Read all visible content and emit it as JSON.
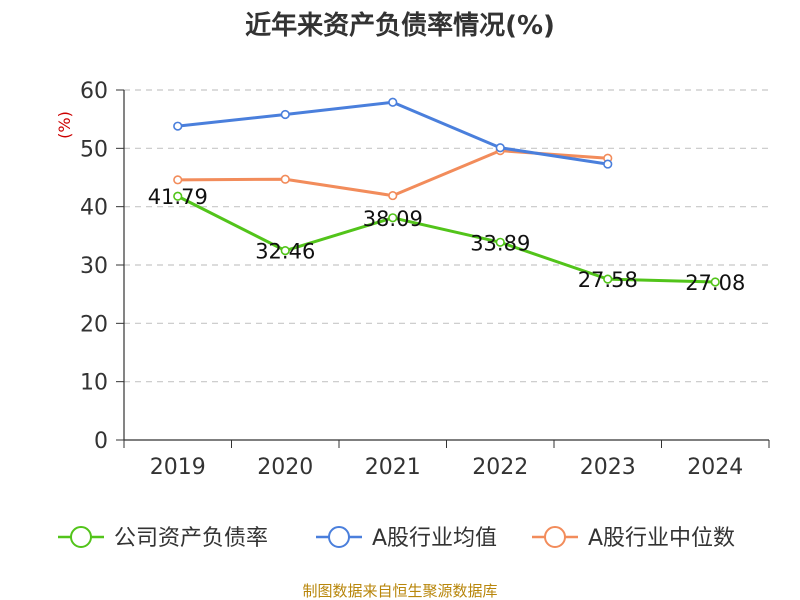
{
  "chart_data": {
    "type": "line",
    "title": "近年来资产负债率情况(%)",
    "ylabel": "(%)",
    "x": [
      "2019",
      "2020",
      "2021",
      "2022",
      "2023",
      "2024"
    ],
    "ylim": [
      0,
      60
    ],
    "yticks": [
      0,
      10,
      20,
      30,
      40,
      50,
      60
    ],
    "grid": true,
    "legend_position": "bottom",
    "series": [
      {
        "name": "公司资产负债率",
        "color": "#52c41a",
        "values": [
          41.79,
          32.46,
          38.09,
          33.89,
          27.58,
          27.08
        ],
        "labels": [
          "41.79",
          "32.46",
          "38.09",
          "33.89",
          "27.58",
          "27.08"
        ]
      },
      {
        "name": "A股行业均值",
        "color": "#4a7fdc",
        "values": [
          53.8,
          55.8,
          57.9,
          50.1,
          47.3,
          null
        ]
      },
      {
        "name": "A股行业中位数",
        "color": "#f28c5b",
        "values": [
          44.6,
          44.7,
          41.9,
          49.6,
          48.3,
          null
        ]
      }
    ]
  },
  "source": "制图数据来自恒生聚源数据库"
}
